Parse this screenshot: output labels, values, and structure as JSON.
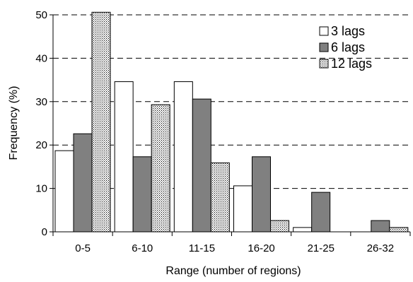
{
  "chart_data": {
    "type": "bar",
    "title": "",
    "xlabel": "Range (number of regions)",
    "ylabel": "Frequency (%)",
    "ylim": [
      0,
      50
    ],
    "yticks": [
      "0",
      "10",
      "20",
      "30",
      "40",
      "50"
    ],
    "grid": "horizontal dashed",
    "legend_position": "top-right",
    "categories": [
      "0-5",
      "6-10",
      "11-15",
      "16-20",
      "21-25",
      "26-32"
    ],
    "series": [
      {
        "name": "3 lags",
        "fill": "#ffffff",
        "pattern": "none",
        "values": [
          18.7,
          34.6,
          34.6,
          10.6,
          1.0,
          0
        ]
      },
      {
        "name": "6 lags",
        "fill": "#808080",
        "pattern": "none",
        "values": [
          22.6,
          17.3,
          30.6,
          17.3,
          9.1,
          2.6
        ]
      },
      {
        "name": "12 lags",
        "fill": "#ffffff",
        "pattern": "dots",
        "values": [
          50.6,
          29.3,
          15.9,
          2.6,
          0,
          1.0
        ]
      }
    ]
  }
}
